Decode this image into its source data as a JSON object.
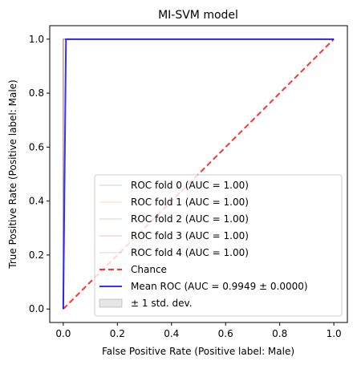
{
  "chart_data": {
    "type": "line",
    "title": "MI-SVM model",
    "xlabel": "False Positive Rate (Positive label: Male)",
    "ylabel": "True Positive Rate (Positive label: Male)",
    "xlim": [
      -0.05,
      1.05
    ],
    "ylim": [
      -0.05,
      1.05
    ],
    "xticks": [
      0.0,
      0.2,
      0.4,
      0.6,
      0.8,
      1.0
    ],
    "yticks": [
      0.0,
      0.2,
      0.4,
      0.6,
      0.8,
      1.0
    ],
    "xtick_labels": [
      "0.0",
      "0.2",
      "0.4",
      "0.6",
      "0.8",
      "1.0"
    ],
    "ytick_labels": [
      "0.0",
      "0.2",
      "0.4",
      "0.6",
      "0.8",
      "1.0"
    ],
    "grid": false,
    "legend_position": "lower-right",
    "series": [
      {
        "name": "ROC fold 0 (AUC = 1.00)",
        "color": "#1f77b4",
        "opacity": 0.3,
        "style": "solid",
        "x": [
          0,
          0,
          1
        ],
        "y": [
          0,
          1,
          1
        ]
      },
      {
        "name": "ROC fold 1 (AUC = 1.00)",
        "color": "#ff7f0e",
        "opacity": 0.3,
        "style": "solid",
        "x": [
          0,
          0,
          1
        ],
        "y": [
          0,
          1,
          1
        ]
      },
      {
        "name": "ROC fold 2 (AUC = 1.00)",
        "color": "#2ca02c",
        "opacity": 0.3,
        "style": "solid",
        "x": [
          0,
          0,
          1
        ],
        "y": [
          0,
          1,
          1
        ]
      },
      {
        "name": "ROC fold 3 (AUC = 1.00)",
        "color": "#d62728",
        "opacity": 0.3,
        "style": "solid",
        "x": [
          0,
          0,
          1
        ],
        "y": [
          0,
          1,
          1
        ]
      },
      {
        "name": "ROC fold 4 (AUC = 1.00)",
        "color": "#9467bd",
        "opacity": 0.3,
        "style": "solid",
        "x": [
          0,
          0,
          1
        ],
        "y": [
          0,
          1,
          1
        ]
      },
      {
        "name": "Chance",
        "color": "#ff0000",
        "opacity": 0.8,
        "style": "dashed",
        "x": [
          0,
          1
        ],
        "y": [
          0,
          1
        ]
      },
      {
        "name": "Mean ROC (AUC = 0.9949 ± 0.0000)",
        "color": "#0000ff",
        "opacity": 0.8,
        "style": "solid",
        "x": [
          0,
          0.01,
          1
        ],
        "y": [
          0,
          1,
          1
        ]
      }
    ],
    "band": {
      "name": "± 1 std. dev.",
      "color": "#808080",
      "opacity": 0.2
    }
  }
}
